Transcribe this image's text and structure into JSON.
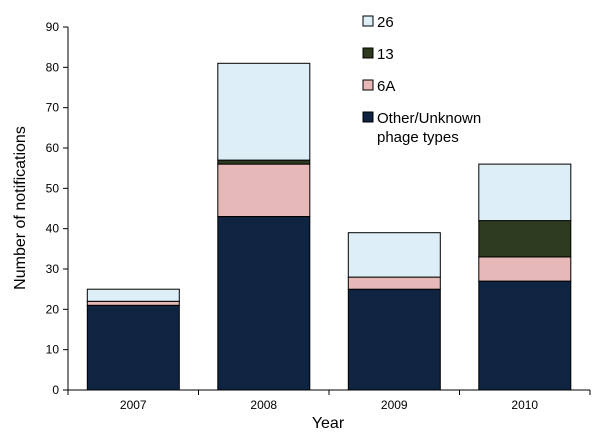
{
  "chart_data": {
    "type": "bar",
    "stacked": true,
    "title": "",
    "xlabel": "Year",
    "ylabel": "Number of notifications",
    "ylim": [
      0,
      90
    ],
    "yticks": [
      "0",
      "10",
      "20",
      "30",
      "40",
      "50",
      "60",
      "70",
      "80",
      "90"
    ],
    "categories": [
      "2007",
      "2008",
      "2009",
      "2010"
    ],
    "series": [
      {
        "name": "Other/Unknown phage types",
        "name_lines": [
          "Other/Unknown",
          "phage types"
        ],
        "values": [
          21,
          43,
          25,
          27
        ],
        "color": "#0e2441"
      },
      {
        "name": "6A",
        "name_lines": [
          "6A"
        ],
        "values": [
          1,
          13,
          3,
          6
        ],
        "color": "#e6b8b8"
      },
      {
        "name": "13",
        "name_lines": [
          "13"
        ],
        "values": [
          0,
          1,
          0,
          9
        ],
        "color": "#2e3a1f"
      },
      {
        "name": "26",
        "name_lines": [
          "26"
        ],
        "values": [
          3,
          24,
          11,
          14
        ],
        "color": "#ddeef7"
      }
    ],
    "legend_order": [
      3,
      2,
      1,
      0
    ],
    "legend_placement": "top-center",
    "grid": false
  }
}
